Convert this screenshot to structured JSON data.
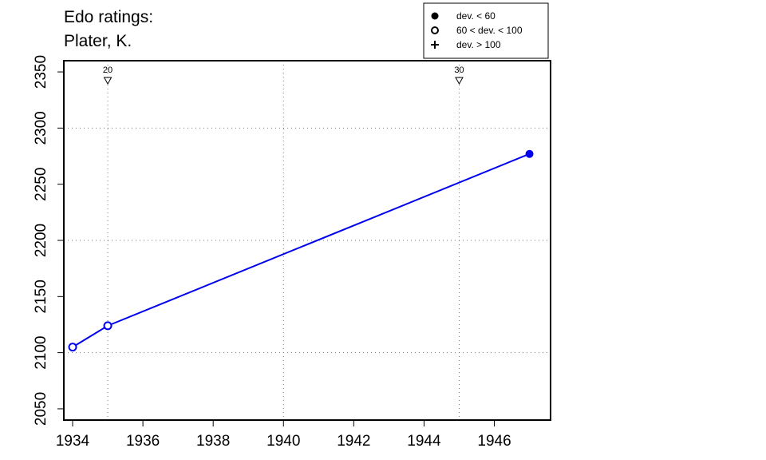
{
  "chart_data": {
    "type": "line",
    "title_lines": [
      "Edo ratings:",
      "Plater, K."
    ],
    "xlabel": "",
    "ylabel": "",
    "xlim": [
      1933.75,
      1947.6
    ],
    "ylim": [
      2040,
      2360
    ],
    "x_ticks": [
      1934,
      1936,
      1938,
      1940,
      1942,
      1944,
      1946
    ],
    "y_ticks": [
      2050,
      2100,
      2150,
      2200,
      2250,
      2300,
      2350
    ],
    "grid": {
      "style": "dotted",
      "x": [
        1935,
        1940,
        1945
      ],
      "y": [
        2100,
        2200,
        2300
      ]
    },
    "series": [
      {
        "color": "#0000ee",
        "points": [
          {
            "x": 1934,
            "y": 2105,
            "marker": "open"
          },
          {
            "x": 1935,
            "y": 2124,
            "marker": "open"
          },
          {
            "x": 1947,
            "y": 2277,
            "marker": "filled"
          }
        ]
      }
    ],
    "age_markers": [
      {
        "x": 1935,
        "label": "20"
      },
      {
        "x": 1945,
        "label": "30"
      }
    ],
    "legend": {
      "position": "top-right",
      "entries": [
        {
          "symbol": "filled-circle",
          "label": "dev. < 60"
        },
        {
          "symbol": "open-circle",
          "label": "60 < dev. < 100"
        },
        {
          "symbol": "plus",
          "label": "dev. > 100"
        }
      ]
    }
  }
}
